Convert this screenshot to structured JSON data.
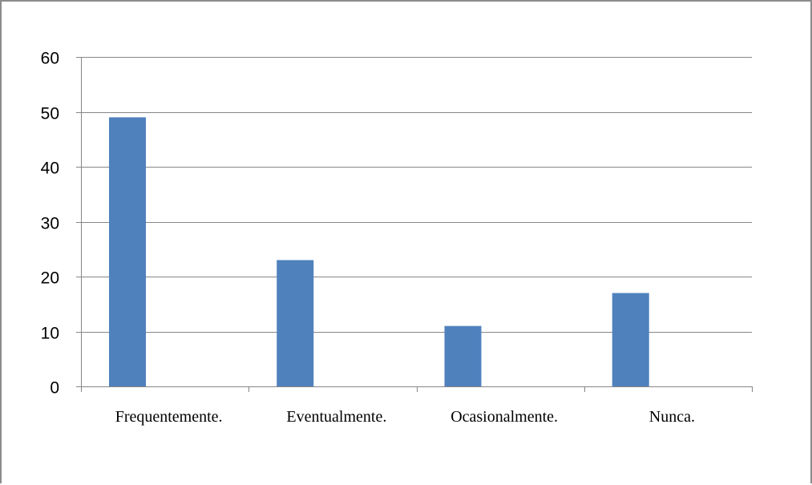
{
  "chart_data": {
    "type": "bar",
    "categories": [
      "Frequentemente.",
      "Eventualmente.",
      "Ocasionalmente.",
      "Nunca."
    ],
    "values": [
      49,
      23,
      11,
      17
    ],
    "title": "",
    "xlabel": "",
    "ylabel": "",
    "ylim": [
      0,
      60
    ],
    "yticks": [
      0,
      10,
      20,
      30,
      40,
      50,
      60
    ],
    "grid": true,
    "legend": "none",
    "colors": {
      "bar": "#4f81bd",
      "grid": "#868686",
      "axis": "#868686",
      "frame": "#8c8c8c"
    }
  }
}
